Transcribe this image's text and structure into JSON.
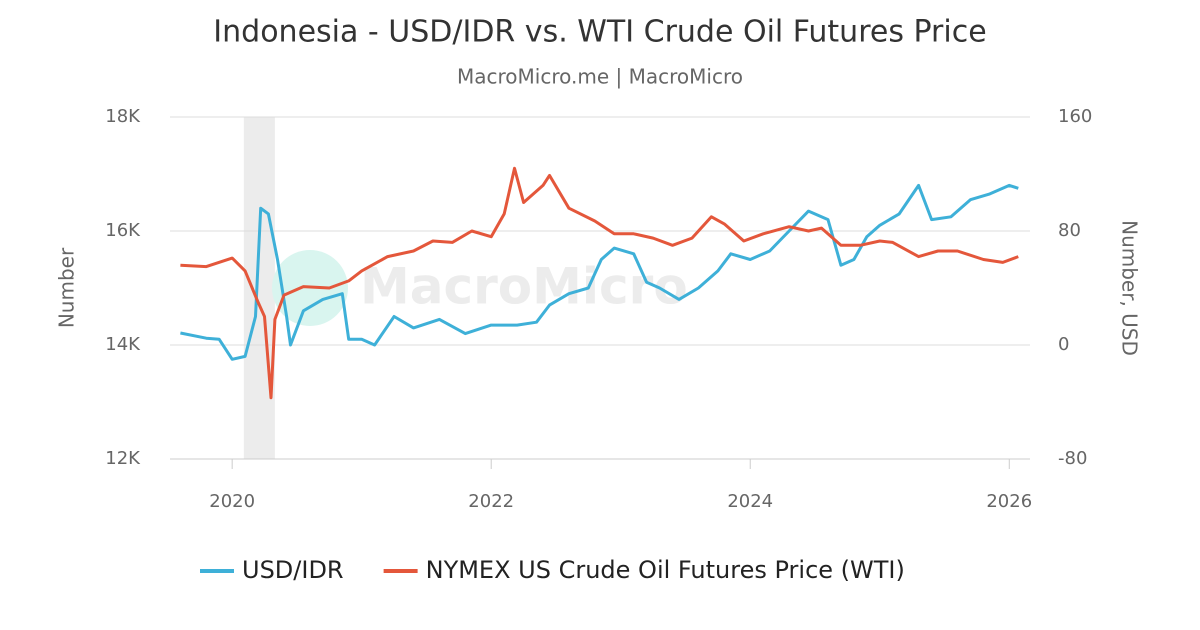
{
  "chart_data": {
    "type": "line",
    "title": "Indonesia - USD/IDR vs. WTI Crude Oil Futures Price",
    "subtitle": "MacroMicro.me | MacroMicro",
    "watermark": "MacroMicro",
    "ylabel": "Number",
    "y2label": "Number, USD",
    "xlim": [
      2019.52,
      2026.16
    ],
    "xticks": [
      2020,
      2022,
      2024,
      2026
    ],
    "ylim": [
      12000,
      18000
    ],
    "yticks": [
      {
        "value": 12000,
        "label": "12K"
      },
      {
        "value": 14000,
        "label": "14K"
      },
      {
        "value": 16000,
        "label": "16K"
      },
      {
        "value": 18000,
        "label": "18K"
      }
    ],
    "y2lim": [
      -80,
      160
    ],
    "y2ticks": [
      -80,
      0,
      80,
      160
    ],
    "grid": true,
    "legend": "bottom",
    "shaded_regions": [
      [
        2020.09,
        2020.33
      ]
    ],
    "series": [
      {
        "name": "USD/IDR",
        "color": "#3eb0d8",
        "x": [
          2019.6,
          2019.8,
          2019.9,
          2020.0,
          2020.1,
          2020.18,
          2020.22,
          2020.28,
          2020.35,
          2020.42,
          2020.45,
          2020.55,
          2020.7,
          2020.85,
          2020.9,
          2021.0,
          2021.1,
          2021.25,
          2021.4,
          2021.6,
          2021.8,
          2022.0,
          2022.2,
          2022.35,
          2022.45,
          2022.6,
          2022.75,
          2022.85,
          2022.95,
          2023.1,
          2023.2,
          2023.3,
          2023.45,
          2023.6,
          2023.75,
          2023.85,
          2024.0,
          2024.15,
          2024.3,
          2024.45,
          2024.6,
          2024.7,
          2024.8,
          2024.9,
          2025.0,
          2025.15,
          2025.3,
          2025.4,
          2025.55,
          2025.7,
          2025.85,
          2026.0,
          2026.07
        ],
        "values": [
          14210,
          14120,
          14100,
          13750,
          13800,
          14500,
          16400,
          16300,
          15500,
          14500,
          14000,
          14600,
          14800,
          14900,
          14100,
          14100,
          14000,
          14500,
          14300,
          14450,
          14200,
          14350,
          14350,
          14400,
          14700,
          14900,
          15000,
          15500,
          15700,
          15600,
          15100,
          15000,
          14800,
          15000,
          15300,
          15600,
          15500,
          15650,
          16000,
          16350,
          16200,
          15400,
          15500,
          15900,
          16100,
          16300,
          16800,
          16200,
          16250,
          16550,
          16650,
          16800,
          16750
        ]
      },
      {
        "name": "NYMEX US Crude Oil Futures Price (WTI)",
        "color": "#e4573b",
        "axis": "y2",
        "x": [
          2019.6,
          2019.8,
          2020.0,
          2020.1,
          2020.2,
          2020.25,
          2020.3,
          2020.33,
          2020.4,
          2020.55,
          2020.75,
          2020.9,
          2021.0,
          2021.2,
          2021.4,
          2021.55,
          2021.7,
          2021.85,
          2022.0,
          2022.1,
          2022.18,
          2022.25,
          2022.4,
          2022.45,
          2022.6,
          2022.8,
          2022.95,
          2023.1,
          2023.25,
          2023.4,
          2023.55,
          2023.7,
          2023.8,
          2023.95,
          2024.1,
          2024.3,
          2024.45,
          2024.55,
          2024.7,
          2024.85,
          2025.0,
          2025.1,
          2025.3,
          2025.45,
          2025.6,
          2025.8,
          2025.95,
          2026.07
        ],
        "values": [
          56,
          55,
          61,
          52,
          30,
          20,
          -37,
          18,
          35,
          41,
          40,
          45,
          52,
          62,
          66,
          73,
          72,
          80,
          76,
          92,
          124,
          100,
          112,
          119,
          96,
          87,
          78,
          78,
          75,
          70,
          75,
          90,
          85,
          73,
          78,
          83,
          80,
          82,
          70,
          70,
          73,
          72,
          62,
          66,
          66,
          60,
          58,
          62
        ]
      }
    ]
  }
}
